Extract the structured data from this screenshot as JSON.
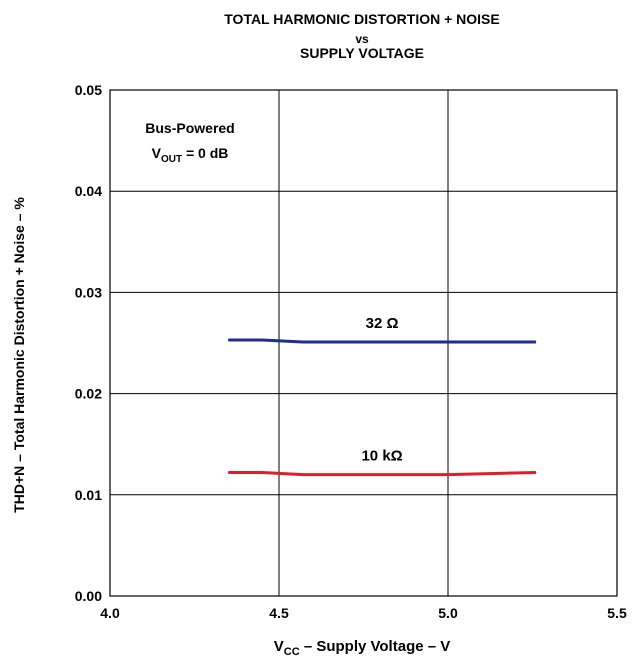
{
  "chart_data": {
    "type": "line",
    "title": [
      "TOTAL HARMONIC DISTORTION + NOISE",
      "vs",
      "SUPPLY VOLTAGE"
    ],
    "xlabel": {
      "main": "V",
      "sub": "CC",
      "rest": " – Supply Voltage – V"
    },
    "ylabel": "THD+N – Total Harmonic Distortion + Noise – %",
    "xlim": [
      4.0,
      5.5
    ],
    "ylim": [
      0.0,
      0.05
    ],
    "x_ticks": [
      "4.0",
      "4.5",
      "5.0",
      "5.5"
    ],
    "y_ticks": [
      "0.00",
      "0.01",
      "0.02",
      "0.03",
      "0.04",
      "0.05"
    ],
    "grid": true,
    "annotation": {
      "line1": "Bus-Powered",
      "line2_main": "V",
      "line2_sub": "OUT",
      "line2_rest": " = 0 dB"
    },
    "series": [
      {
        "name": "32 Ω",
        "color": "#1f2d8c",
        "x": [
          4.35,
          4.45,
          4.57,
          5.0,
          5.26
        ],
        "y": [
          0.0253,
          0.0253,
          0.0251,
          0.0251,
          0.0251
        ]
      },
      {
        "name": "10 kΩ",
        "color": "#e01e27",
        "x": [
          4.35,
          4.45,
          4.57,
          5.0,
          5.26
        ],
        "y": [
          0.0122,
          0.0122,
          0.012,
          0.012,
          0.0122
        ]
      }
    ]
  }
}
